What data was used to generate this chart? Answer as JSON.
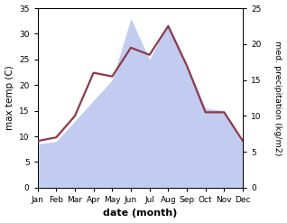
{
  "months": [
    "Jan",
    "Feb",
    "Mar",
    "Apr",
    "May",
    "Jun",
    "Jul",
    "Aug",
    "Sep",
    "Oct",
    "Nov",
    "Dec"
  ],
  "temp_max": [
    8.5,
    9.0,
    13.0,
    17.0,
    21.0,
    33.0,
    25.0,
    32.0,
    24.0,
    15.5,
    15.0,
    8.5
  ],
  "precip": [
    6.5,
    7.0,
    10.0,
    16.0,
    15.5,
    19.5,
    18.5,
    22.5,
    17.0,
    10.5,
    10.5,
    6.5
  ],
  "temp_fill_color": "#b8c4ee",
  "temp_fill_alpha": 0.85,
  "precip_line_color": "#8b3a4a",
  "temp_ylim": [
    0,
    35
  ],
  "precip_ylim": [
    0,
    25
  ],
  "temp_yticks": [
    0,
    5,
    10,
    15,
    20,
    25,
    30,
    35
  ],
  "precip_yticks": [
    0,
    5,
    10,
    15,
    20,
    25
  ],
  "xlabel": "date (month)",
  "ylabel_left": "max temp (C)",
  "ylabel_right": "med. precipitation (kg/m2)",
  "bg_color": "#ffffff"
}
